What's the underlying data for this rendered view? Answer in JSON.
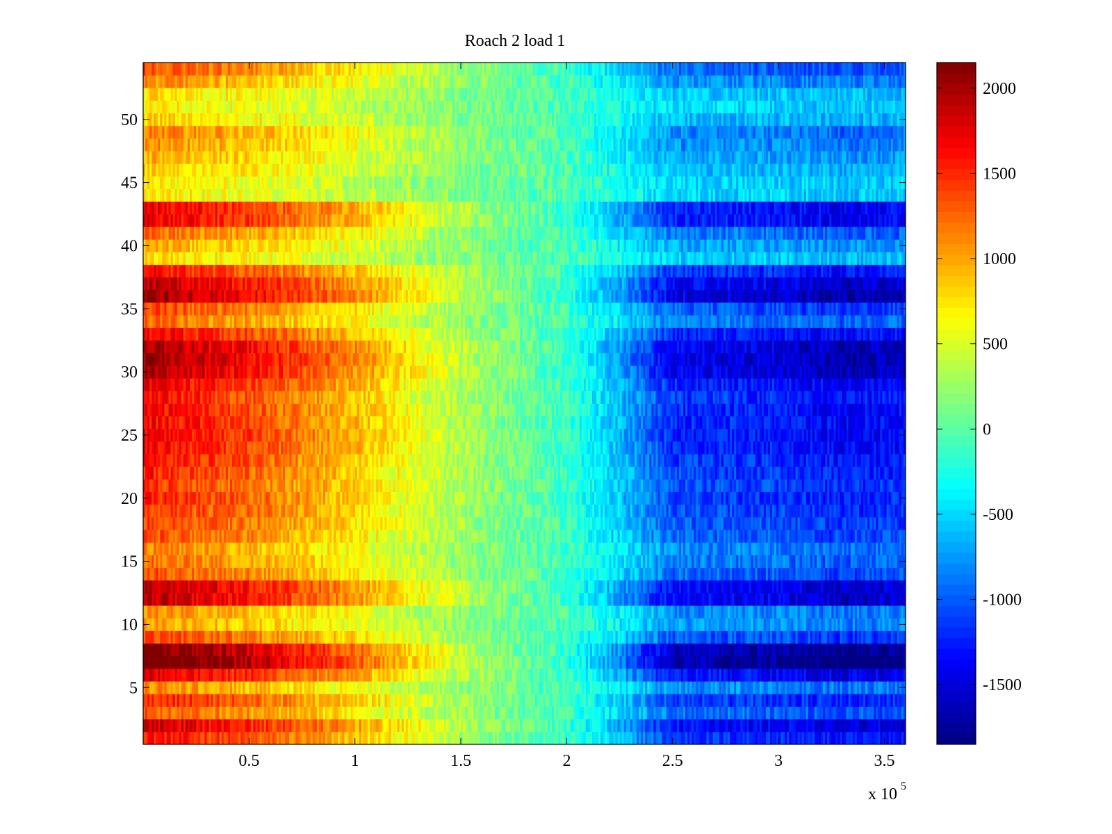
{
  "chart_data": {
    "type": "heatmap",
    "title": "Roach 2 load 1",
    "xlabel": "",
    "ylabel": "",
    "x_multiplier_label": "x 10",
    "x_multiplier_exponent": "5",
    "xlim": [
      0,
      3.6
    ],
    "ylim": [
      0.5,
      54.5
    ],
    "x_ticks": [
      0.5,
      1,
      1.5,
      2,
      2.5,
      3,
      3.5
    ],
    "x_tick_labels": [
      "0.5",
      "1",
      "1.5",
      "2",
      "2.5",
      "3",
      "3.5"
    ],
    "y_ticks": [
      5,
      10,
      15,
      20,
      25,
      30,
      35,
      40,
      45,
      50
    ],
    "y_tick_labels": [
      "5",
      "10",
      "15",
      "20",
      "25",
      "30",
      "35",
      "40",
      "45",
      "50"
    ],
    "colormap": "jet",
    "colorbar": {
      "range": [
        -1850,
        2150
      ],
      "ticks": [
        -1500,
        -1000,
        -500,
        0,
        500,
        1000,
        1500,
        2000
      ],
      "tick_labels": [
        "-1500",
        "-1000",
        "-500",
        "0",
        "500",
        "1000",
        "1500",
        "2000"
      ]
    },
    "rows": 54,
    "x_profile_knots": [
      0,
      0.5,
      1.0,
      1.5,
      2.0,
      2.3,
      2.5,
      3.0,
      3.3,
      3.6
    ],
    "base_profile": [
      1300,
      1050,
      700,
      250,
      -100,
      -550,
      -900,
      -950,
      -1050,
      -1000
    ],
    "row_amplitude": [
      1.25,
      1.45,
      1.0,
      1.2,
      0.85,
      1.4,
      1.85,
      1.75,
      1.1,
      0.8,
      0.85,
      1.5,
      1.5,
      1.05,
      0.95,
      0.9,
      1.05,
      1.1,
      1.15,
      1.2,
      1.15,
      1.2,
      1.25,
      1.3,
      1.35,
      1.3,
      1.3,
      1.25,
      1.35,
      1.55,
      1.6,
      1.55,
      1.3,
      0.95,
      1.1,
      1.6,
      1.5,
      1.25,
      0.6,
      0.75,
      0.95,
      1.35,
      1.35,
      0.55,
      0.55,
      0.65,
      0.75,
      0.85,
      0.9,
      0.65,
      0.55,
      0.6,
      0.85,
      1.05
    ],
    "noise_amplitude": 220
  }
}
